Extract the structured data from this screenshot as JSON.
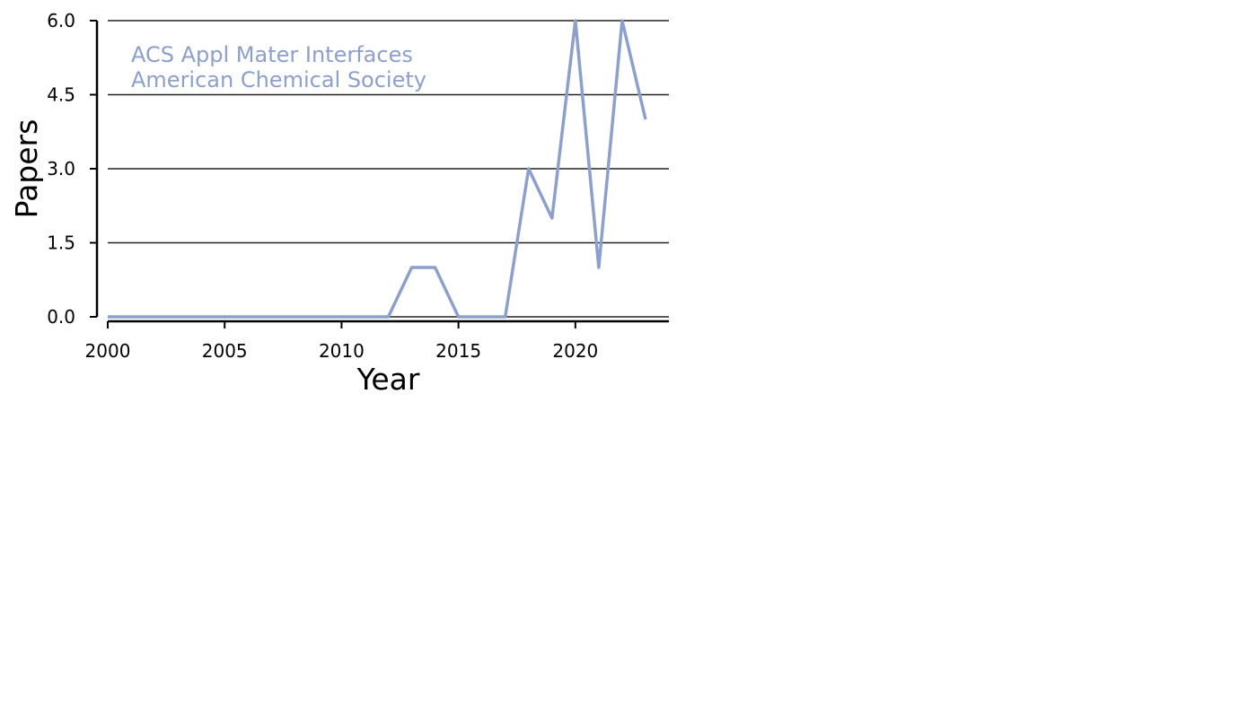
{
  "chart_data": {
    "type": "line",
    "title": "",
    "xlabel": "Year",
    "ylabel": "Papers",
    "xlim": [
      2000,
      2024
    ],
    "ylim": [
      0,
      6
    ],
    "grid": "horizontal",
    "x_ticks": [
      "2000",
      "2005",
      "2010",
      "2015",
      "2020"
    ],
    "y_ticks": [
      "0.0",
      "1.5",
      "3.0",
      "4.5",
      "6.0"
    ],
    "annotation": [
      "ACS Appl Mater Interfaces",
      "American Chemical Society"
    ],
    "series": [
      {
        "color": "#8da0cb",
        "x": [
          2000,
          2001,
          2002,
          2003,
          2004,
          2005,
          2006,
          2007,
          2008,
          2009,
          2010,
          2011,
          2012,
          2013,
          2014,
          2015,
          2016,
          2017,
          2018,
          2019,
          2020,
          2021,
          2022,
          2023
        ],
        "values": [
          0,
          0,
          0,
          0,
          0,
          0,
          0,
          0,
          0,
          0,
          0,
          0,
          0,
          1,
          1,
          0,
          0,
          0,
          3,
          2,
          6,
          1,
          6,
          4
        ]
      }
    ]
  }
}
